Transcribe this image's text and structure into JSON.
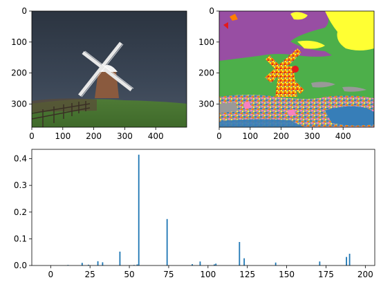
{
  "chart_data": [
    {
      "type": "image",
      "subject": "photo of a windmill under a dark stormy sky",
      "xticks": [
        "0",
        "100",
        "200",
        "300",
        "400"
      ],
      "yticks": [
        "0",
        "100",
        "200",
        "300"
      ]
    },
    {
      "type": "image",
      "subject": "segmentation label map of the windmill photo",
      "palette": [
        "#984ea3",
        "#4daf4a",
        "#ffff33",
        "#ff7f00",
        "#e41a1c",
        "#377eb8",
        "#999999",
        "#f781bf",
        "#a65628"
      ],
      "xticks": [
        "0",
        "100",
        "200",
        "300",
        "400"
      ],
      "yticks": [
        "0",
        "100",
        "200",
        "300"
      ]
    },
    {
      "type": "bar",
      "color": "#1f77b4",
      "xlim": [
        -12,
        206
      ],
      "ylim": [
        0,
        0.435
      ],
      "xticks": [
        0,
        25,
        50,
        75,
        100,
        125,
        150,
        175,
        200
      ],
      "yticks": [
        0.0,
        0.1,
        0.2,
        0.3,
        0.4
      ],
      "ytick_labels": [
        "0.0",
        "0.1",
        "0.2",
        "0.3",
        "0.4"
      ],
      "x": [
        11,
        20,
        24,
        30,
        33,
        44,
        53,
        55,
        56,
        74,
        90,
        95,
        104,
        105,
        120,
        123,
        143,
        171,
        188,
        190
      ],
      "values": [
        0.002,
        0.01,
        0.003,
        0.016,
        0.012,
        0.052,
        0.002,
        0.004,
        0.415,
        0.174,
        0.005,
        0.015,
        0.004,
        0.007,
        0.088,
        0.027,
        0.011,
        0.015,
        0.032,
        0.044
      ]
    }
  ]
}
